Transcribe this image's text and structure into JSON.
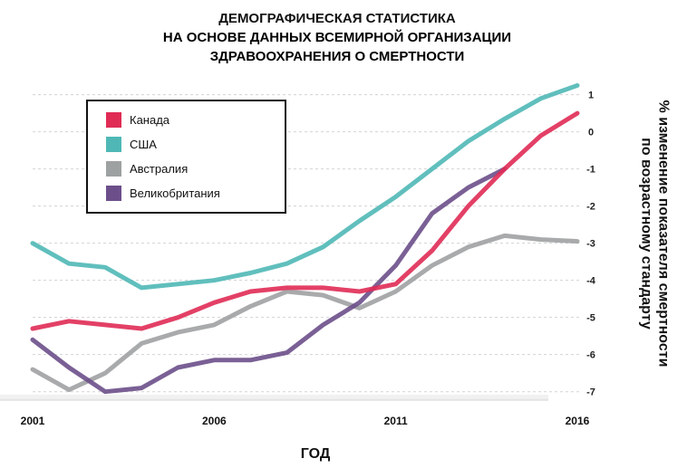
{
  "chart_data": {
    "type": "line",
    "title_lines": [
      "ДЕМОГРАФИЧЕСКАЯ СТАТИСТИКА"
    ],
    "subtitle_lines": [
      "НА ОСНОВЕ ДАННЫХ ВСЕМИРНОЙ ОРГАНИЗАЦИИ",
      "ЗДРАВООХРАНЕНИЯ О СМЕРТНОСТИ"
    ],
    "xlabel": "ГОД",
    "ylabel": "% изменение показателя смертности по возрастному стандарту",
    "x_ticks": [
      2001,
      2006,
      2011,
      2016
    ],
    "y_ticks": [
      1,
      0,
      -1,
      -2,
      -3,
      -4,
      -5,
      -6,
      -7
    ],
    "xlim": [
      2001,
      2016.4
    ],
    "ylim": [
      -7.3,
      1.6
    ],
    "grid": "horizontal",
    "legend_position": "top-left",
    "series": [
      {
        "name": "Канада",
        "color": "#b8194f",
        "x": [
          2001,
          2002,
          2003,
          2004,
          2005,
          2006,
          2007,
          2008,
          2009,
          2010,
          2011,
          2012,
          2013,
          2014,
          2015,
          2016
        ],
        "y": [
          -5.3,
          -5.1,
          -5.2,
          -5.3,
          -5.0,
          -4.6,
          -4.3,
          -4.2,
          -4.2,
          -4.3,
          -4.1,
          -3.2,
          -2.0,
          -1.0,
          -0.1,
          0.5
        ]
      },
      {
        "name": "США",
        "color": "#5cc8c4",
        "x": [
          2001,
          2002,
          2003,
          2004,
          2005,
          2006,
          2007,
          2008,
          2009,
          2010,
          2011,
          2012,
          2013,
          2014,
          2015,
          2016
        ],
        "y": [
          -3.0,
          -3.55,
          -3.65,
          -4.2,
          -4.1,
          -4.0,
          -3.8,
          -3.55,
          -3.1,
          -2.4,
          -1.75,
          -1.0,
          -0.25,
          0.35,
          0.9,
          1.25
        ]
      },
      {
        "name": "Австралия",
        "color": "#a7aaa9",
        "x": [
          2001,
          2002,
          2003,
          2004,
          2005,
          2006,
          2007,
          2008,
          2009,
          2010,
          2011,
          2012,
          2013,
          2014,
          2015,
          2016
        ],
        "y": [
          -6.4,
          -6.95,
          -6.5,
          -5.7,
          -5.4,
          -5.2,
          -4.7,
          -4.3,
          -4.4,
          -4.75,
          -4.3,
          -3.6,
          -3.1,
          -2.8,
          -2.9,
          -2.95
        ]
      },
      {
        "name": "Великобритания",
        "color": "#7a5a96",
        "x": [
          2001,
          2002,
          2003,
          2004,
          2005,
          2006,
          2007,
          2008,
          2009,
          2010,
          2011,
          2012,
          2013,
          2014
        ],
        "y": [
          -5.6,
          -6.35,
          -7.0,
          -6.9,
          -6.35,
          -6.15,
          -6.15,
          -5.95,
          -5.2,
          -4.6,
          -3.6,
          -2.2,
          -1.5,
          -1.0
        ]
      }
    ]
  }
}
